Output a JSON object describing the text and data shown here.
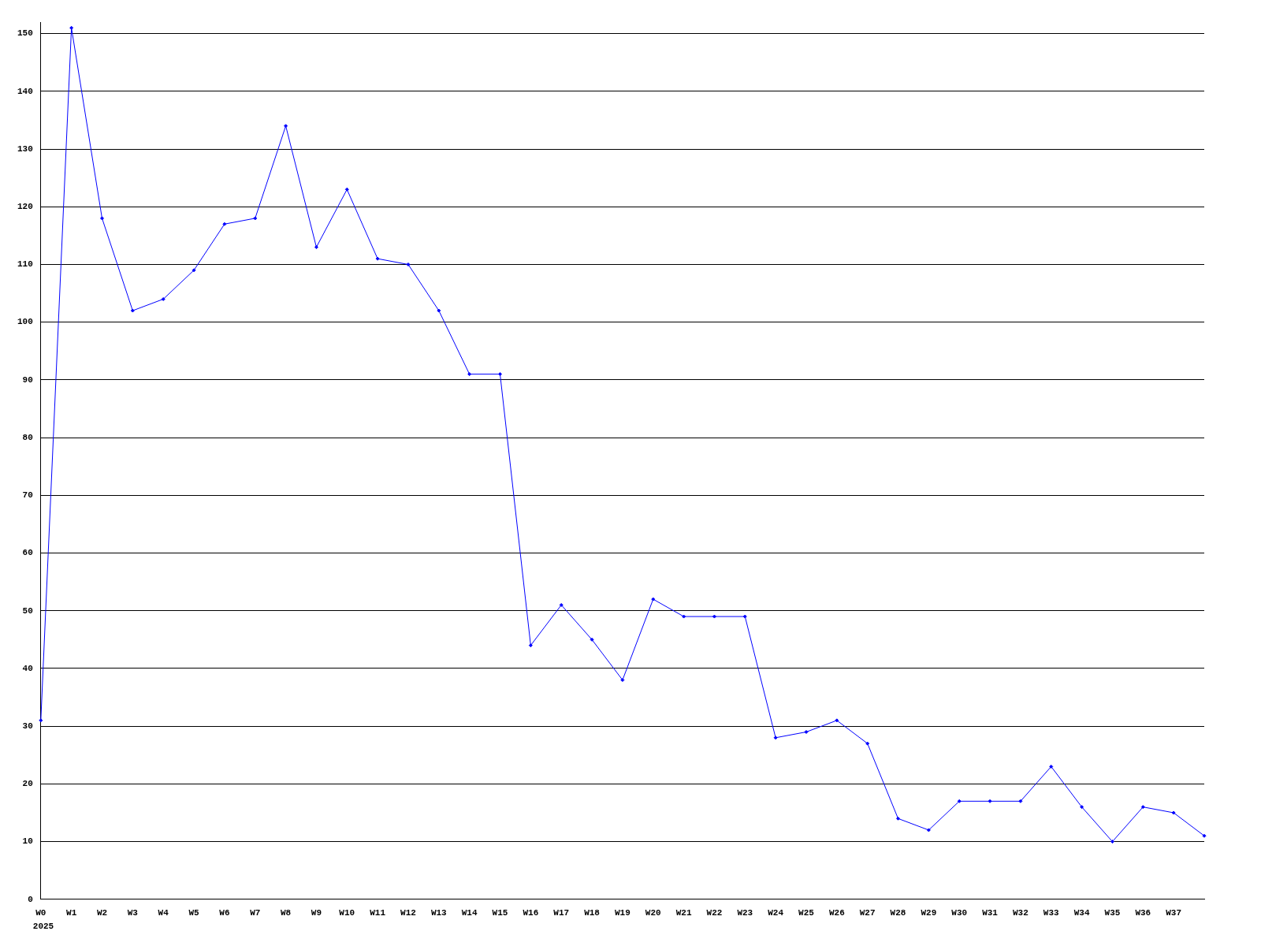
{
  "chart_data": {
    "type": "line",
    "categories": [
      "W0",
      "W1",
      "W2",
      "W3",
      "W4",
      "W5",
      "W6",
      "W7",
      "W8",
      "W9",
      "W10",
      "W11",
      "W12",
      "W13",
      "W14",
      "W15",
      "W16",
      "W17",
      "W18",
      "W19",
      "W20",
      "W21",
      "W22",
      "W23",
      "W24",
      "W25",
      "W26",
      "W27",
      "W28",
      "W29",
      "W30",
      "W31",
      "W32",
      "W33",
      "W34",
      "W35",
      "W36",
      "W37",
      null
    ],
    "series": [
      {
        "color": "#0000ff",
        "values": [
          31,
          151,
          118,
          102,
          104,
          109,
          117,
          118,
          134,
          113,
          123,
          111,
          110,
          102,
          91,
          91,
          44,
          51,
          45,
          38,
          52,
          49,
          49,
          49,
          28,
          29,
          31,
          27,
          14,
          12,
          17,
          17,
          17,
          23,
          16,
          10,
          16,
          15,
          11
        ]
      }
    ],
    "ylim": [
      0,
      152
    ],
    "yticks": [
      0,
      10,
      20,
      30,
      40,
      50,
      60,
      70,
      80,
      90,
      100,
      110,
      120,
      130,
      140,
      150
    ],
    "grid": "y",
    "legend": false,
    "marker": "diamond",
    "line_style": "solid",
    "annotations": [
      "2025"
    ]
  }
}
